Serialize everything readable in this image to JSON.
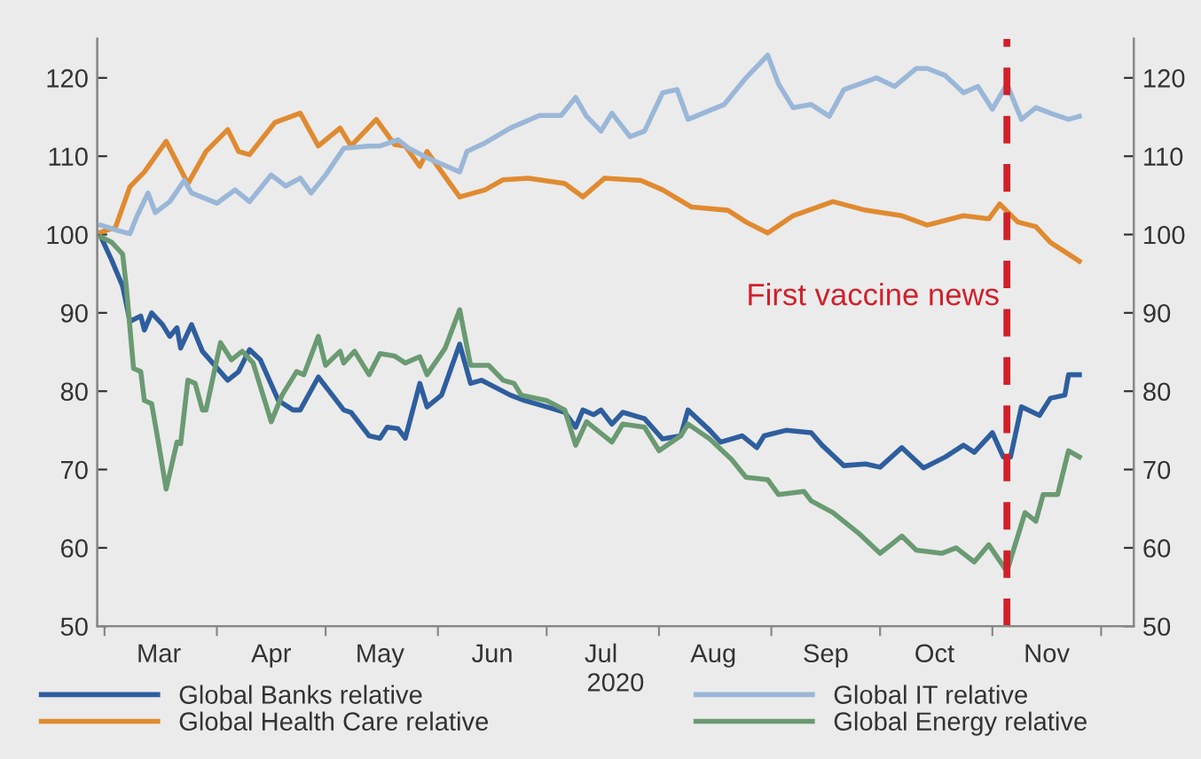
{
  "chart_data": {
    "type": "line",
    "xlabel": "2020",
    "xlim": [
      "2020-02-28",
      "2020-12-10"
    ],
    "xticks": [
      {
        "value": "2020-03-01",
        "label": null
      },
      {
        "value": "2020-04-01",
        "label": null
      },
      {
        "value": "2020-05-01",
        "label": null
      },
      {
        "value": "2020-06-01",
        "label": null
      },
      {
        "value": "2020-07-01",
        "label": null
      },
      {
        "value": "2020-08-01",
        "label": null
      },
      {
        "value": "2020-09-01",
        "label": null
      },
      {
        "value": "2020-10-01",
        "label": null
      },
      {
        "value": "2020-11-01",
        "label": null
      },
      {
        "value": "2020-12-01",
        "label": null
      },
      {
        "value": "2020-03-16",
        "label": "Mar"
      },
      {
        "value": "2020-04-16",
        "label": "Apr"
      },
      {
        "value": "2020-05-16",
        "label": "May"
      },
      {
        "value": "2020-06-16",
        "label": "Jun"
      },
      {
        "value": "2020-07-16",
        "label": "Jul"
      },
      {
        "value": "2020-08-16",
        "label": "Aug"
      },
      {
        "value": "2020-09-16",
        "label": "Sep"
      },
      {
        "value": "2020-10-16",
        "label": "Oct"
      },
      {
        "value": "2020-11-16",
        "label": "Nov"
      }
    ],
    "ylim": [
      50,
      125
    ],
    "yticks": [
      50,
      60,
      70,
      80,
      90,
      100,
      110,
      120
    ],
    "y2lim": [
      50,
      125
    ],
    "y2ticks": [
      50,
      60,
      70,
      80,
      90,
      100,
      110,
      120
    ],
    "grid": false,
    "legend": "bottom",
    "marker": "none",
    "line_style": "solid",
    "ref_lines": [
      {
        "axis": "x",
        "value": "2020-11-05",
        "label": "First vaccine news",
        "color": "#d0202a",
        "line_style": "dashed"
      }
    ],
    "series": [
      {
        "name": "Global Banks relative",
        "color": "#2e5e9e",
        "x": [
          "2020-02-29",
          "2020-03-03",
          "2020-03-06",
          "2020-03-08",
          "2020-03-11",
          "2020-03-12",
          "2020-03-14",
          "2020-03-17",
          "2020-03-19",
          "2020-03-21",
          "2020-03-22",
          "2020-03-25",
          "2020-03-28",
          "2020-04-04",
          "2020-04-07",
          "2020-04-10",
          "2020-04-13",
          "2020-04-18",
          "2020-04-22",
          "2020-04-24",
          "2020-04-29",
          "2020-05-06",
          "2020-05-08",
          "2020-05-13",
          "2020-05-16",
          "2020-05-18",
          "2020-05-21",
          "2020-05-23",
          "2020-05-27",
          "2020-05-29",
          "2020-06-02",
          "2020-06-07",
          "2020-06-10",
          "2020-06-13",
          "2020-06-21",
          "2020-06-25",
          "2020-07-01",
          "2020-07-06",
          "2020-07-09",
          "2020-07-11",
          "2020-07-14",
          "2020-07-16",
          "2020-07-19",
          "2020-07-22",
          "2020-07-28",
          "2020-08-02",
          "2020-08-07",
          "2020-08-09",
          "2020-08-15",
          "2020-08-18",
          "2020-08-24",
          "2020-08-28",
          "2020-08-30",
          "2020-09-05",
          "2020-09-12",
          "2020-09-15",
          "2020-09-21",
          "2020-09-27",
          "2020-10-01",
          "2020-10-07",
          "2020-10-13",
          "2020-10-19",
          "2020-10-24",
          "2020-10-27",
          "2020-11-01",
          "2020-11-04",
          "2020-11-06",
          "2020-11-09",
          "2020-11-14",
          "2020-11-17",
          "2020-11-21",
          "2020-11-22",
          "2020-11-25"
        ],
        "values": [
          99.7,
          96.7,
          93.4,
          88.9,
          89.6,
          87.8,
          90.0,
          88.5,
          87.0,
          88.1,
          85.5,
          88.5,
          85.1,
          81.4,
          82.5,
          85.3,
          84.0,
          78.8,
          77.6,
          77.6,
          81.8,
          77.6,
          77.3,
          74.3,
          74.0,
          75.4,
          75.2,
          74.0,
          81.0,
          78.0,
          79.5,
          86.0,
          81.0,
          81.4,
          79.5,
          78.8,
          78.0,
          77.3,
          75.4,
          77.6,
          77.0,
          77.6,
          75.8,
          77.3,
          76.5,
          73.9,
          74.3,
          77.6,
          75.0,
          73.5,
          74.3,
          72.8,
          74.3,
          75.0,
          74.7,
          73.1,
          70.5,
          70.7,
          70.3,
          72.8,
          70.2,
          71.6,
          73.1,
          72.2,
          74.7,
          71.6,
          71.6,
          78.0,
          76.9,
          79.1,
          79.5,
          82.1,
          82.1
        ]
      },
      {
        "name": "Global Health Care relative",
        "color": "#e08a30",
        "x": [
          "2020-02-29",
          "2020-03-04",
          "2020-03-08",
          "2020-03-12",
          "2020-03-18",
          "2020-03-24",
          "2020-03-29",
          "2020-04-04",
          "2020-04-07",
          "2020-04-10",
          "2020-04-17",
          "2020-04-24",
          "2020-04-29",
          "2020-05-05",
          "2020-05-08",
          "2020-05-15",
          "2020-05-20",
          "2020-05-23",
          "2020-05-27",
          "2020-05-29",
          "2020-06-07",
          "2020-06-14",
          "2020-06-19",
          "2020-06-26",
          "2020-07-06",
          "2020-07-11",
          "2020-07-17",
          "2020-07-27",
          "2020-08-02",
          "2020-08-10",
          "2020-08-20",
          "2020-08-25",
          "2020-08-31",
          "2020-09-07",
          "2020-09-18",
          "2020-09-27",
          "2020-10-07",
          "2020-10-14",
          "2020-10-24",
          "2020-10-31",
          "2020-11-03",
          "2020-11-08",
          "2020-11-13",
          "2020-11-17",
          "2020-11-22",
          "2020-11-25"
        ],
        "values": [
          100.3,
          100.9,
          106.1,
          108.0,
          111.9,
          106.5,
          110.6,
          113.4,
          110.6,
          110.2,
          114.3,
          115.5,
          111.3,
          113.6,
          111.3,
          114.7,
          111.5,
          111.3,
          108.7,
          110.6,
          104.8,
          105.7,
          107.0,
          107.2,
          106.5,
          104.8,
          107.2,
          106.9,
          105.7,
          103.5,
          103.1,
          101.6,
          100.2,
          102.4,
          104.2,
          103.1,
          102.4,
          101.2,
          102.4,
          102.0,
          103.9,
          101.6,
          101.0,
          99.0,
          97.5,
          96.6
        ]
      },
      {
        "name": "Global IT relative",
        "color": "#9ab7d8",
        "x": [
          "2020-02-29",
          "2020-03-04",
          "2020-03-08",
          "2020-03-10",
          "2020-03-13",
          "2020-03-15",
          "2020-03-19",
          "2020-03-23",
          "2020-03-25",
          "2020-04-01",
          "2020-04-06",
          "2020-04-10",
          "2020-04-16",
          "2020-04-20",
          "2020-04-24",
          "2020-04-27",
          "2020-05-01",
          "2020-05-06",
          "2020-05-13",
          "2020-05-16",
          "2020-05-21",
          "2020-05-24",
          "2020-05-29",
          "2020-06-07",
          "2020-06-09",
          "2020-06-14",
          "2020-06-21",
          "2020-06-29",
          "2020-07-05",
          "2020-07-09",
          "2020-07-12",
          "2020-07-16",
          "2020-07-19",
          "2020-07-24",
          "2020-07-28",
          "2020-08-02",
          "2020-08-06",
          "2020-08-09",
          "2020-08-19",
          "2020-08-25",
          "2020-08-31",
          "2020-09-03",
          "2020-09-07",
          "2020-09-12",
          "2020-09-17",
          "2020-09-21",
          "2020-09-30",
          "2020-10-05",
          "2020-10-11",
          "2020-10-14",
          "2020-10-19",
          "2020-10-24",
          "2020-10-28",
          "2020-11-01",
          "2020-11-05",
          "2020-11-09",
          "2020-11-13",
          "2020-11-17",
          "2020-11-22",
          "2020-11-25"
        ],
        "values": [
          101.2,
          100.6,
          100.1,
          102.4,
          105.3,
          102.8,
          104.2,
          106.9,
          105.3,
          104.0,
          105.7,
          104.2,
          107.6,
          106.2,
          107.2,
          105.3,
          107.6,
          111.0,
          111.3,
          111.3,
          112.1,
          111.0,
          109.8,
          108.0,
          110.6,
          111.7,
          113.6,
          115.2,
          115.2,
          117.5,
          115.1,
          113.2,
          115.5,
          112.5,
          113.2,
          118.1,
          118.5,
          114.7,
          116.6,
          120.0,
          122.9,
          119.2,
          116.2,
          116.6,
          115.1,
          118.5,
          120.0,
          118.9,
          121.2,
          121.2,
          120.3,
          118.1,
          118.9,
          116.0,
          119.2,
          114.7,
          116.2,
          115.5,
          114.7,
          115.1
        ]
      },
      {
        "name": "Global Energy relative",
        "color": "#6a9a72",
        "x": [
          "2020-02-29",
          "2020-03-03",
          "2020-03-06",
          "2020-03-07",
          "2020-03-09",
          "2020-03-11",
          "2020-03-12",
          "2020-03-14",
          "2020-03-16",
          "2020-03-18",
          "2020-03-21",
          "2020-03-22",
          "2020-03-24",
          "2020-03-26",
          "2020-03-28",
          "2020-03-29",
          "2020-04-02",
          "2020-04-05",
          "2020-04-08",
          "2020-04-11",
          "2020-04-16",
          "2020-04-19",
          "2020-04-23",
          "2020-04-25",
          "2020-04-29",
          "2020-05-01",
          "2020-05-05",
          "2020-05-06",
          "2020-05-09",
          "2020-05-13",
          "2020-05-16",
          "2020-05-20",
          "2020-05-23",
          "2020-05-27",
          "2020-05-29",
          "2020-06-03",
          "2020-06-07",
          "2020-06-10",
          "2020-06-15",
          "2020-06-19",
          "2020-06-22",
          "2020-06-24",
          "2020-07-01",
          "2020-07-06",
          "2020-07-09",
          "2020-07-12",
          "2020-07-19",
          "2020-07-22",
          "2020-07-28",
          "2020-08-01",
          "2020-08-07",
          "2020-08-09",
          "2020-08-15",
          "2020-08-21",
          "2020-08-25",
          "2020-08-31",
          "2020-09-03",
          "2020-09-10",
          "2020-09-12",
          "2020-09-18",
          "2020-09-25",
          "2020-10-01",
          "2020-10-04",
          "2020-10-07",
          "2020-10-11",
          "2020-10-18",
          "2020-10-22",
          "2020-10-27",
          "2020-10-31",
          "2020-11-05",
          "2020-11-10",
          "2020-11-13",
          "2020-11-15",
          "2020-11-19",
          "2020-11-22",
          "2020-11-25"
        ],
        "values": [
          99.7,
          99.0,
          97.5,
          93.4,
          82.9,
          82.5,
          78.8,
          78.4,
          73.1,
          67.5,
          73.5,
          73.3,
          81.4,
          81.0,
          77.6,
          77.6,
          86.2,
          84.0,
          85.1,
          83.6,
          76.1,
          79.5,
          82.5,
          82.1,
          87.0,
          83.3,
          85.1,
          83.6,
          85.1,
          82.1,
          84.8,
          84.5,
          83.6,
          84.4,
          82.1,
          85.5,
          90.4,
          83.3,
          83.3,
          81.4,
          81.0,
          79.5,
          78.8,
          77.6,
          73.1,
          76.1,
          73.5,
          75.8,
          75.4,
          72.4,
          74.3,
          75.8,
          73.9,
          71.3,
          69.0,
          68.7,
          66.8,
          67.2,
          66.0,
          64.5,
          61.9,
          59.3,
          60.4,
          61.5,
          59.7,
          59.3,
          60.0,
          58.2,
          60.4,
          57.0,
          64.5,
          63.4,
          66.8,
          66.8,
          72.4,
          71.6
        ]
      }
    ]
  }
}
